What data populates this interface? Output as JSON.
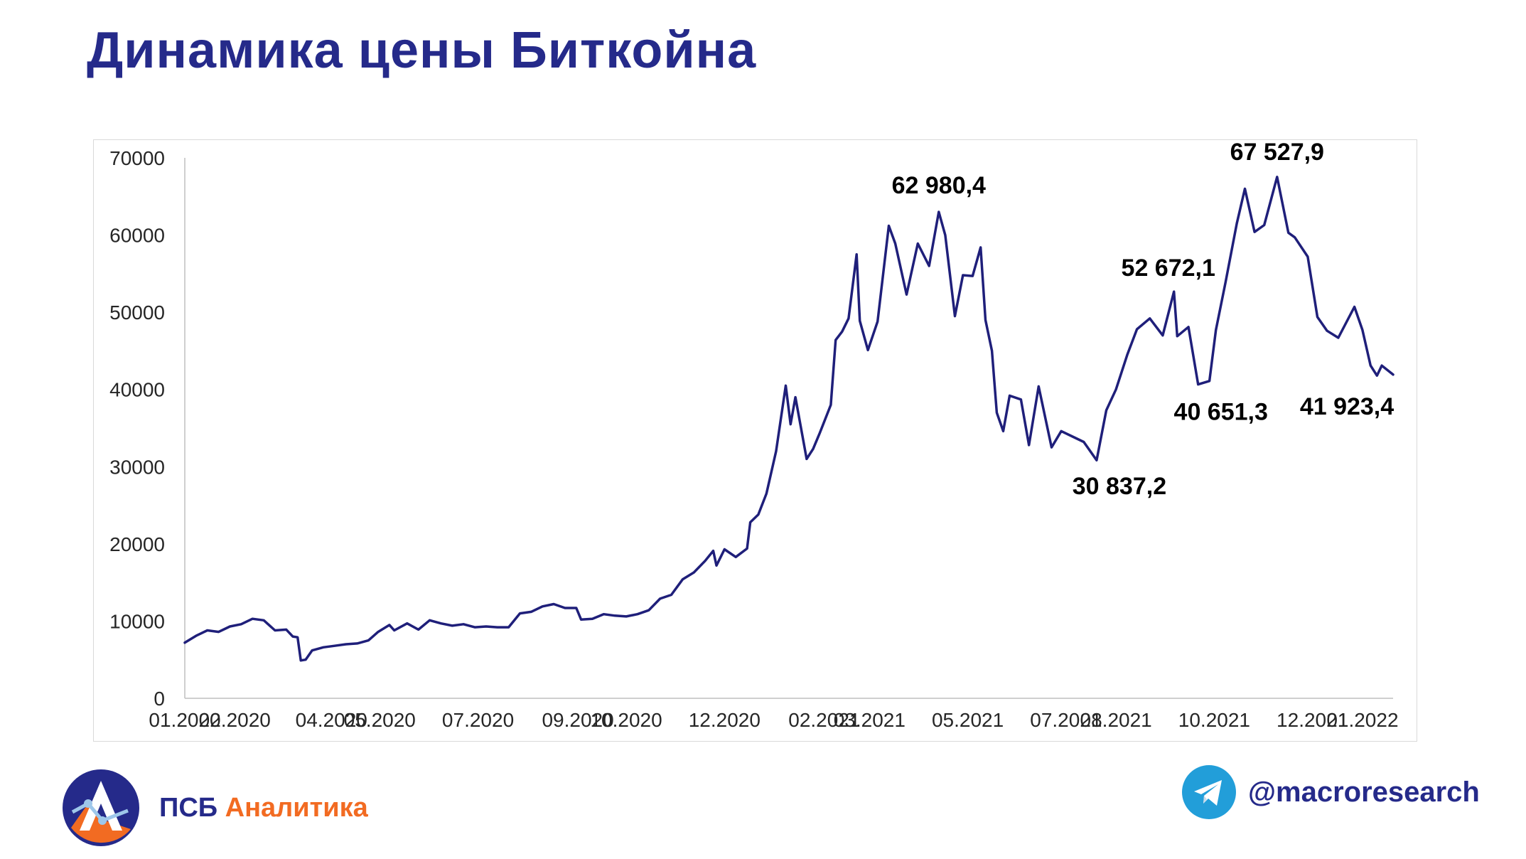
{
  "title": "Динамика цены Биткойна",
  "brand": {
    "logo_icon": "psb-analytics-logo-icon",
    "name_part1": "ПСБ",
    "name_part2": "Аналитика",
    "color_primary": "#252a8a",
    "color_accent": "#f26b22"
  },
  "telegram": {
    "icon": "telegram-icon",
    "handle": "@macroresearch",
    "color": "#229ed9"
  },
  "chart_data": {
    "type": "line",
    "title": "",
    "xlabel": "",
    "ylabel": "",
    "ylim": [
      0,
      70000
    ],
    "yticks": [
      "0",
      "10000",
      "20000",
      "30000",
      "40000",
      "50000",
      "60000",
      "70000"
    ],
    "xlim": [
      "2020-01-01",
      "2022-01-20"
    ],
    "xticks": [
      {
        "date": "2020-01-01",
        "label": "01.2020"
      },
      {
        "date": "2020-02-01",
        "label": "02.2020"
      },
      {
        "date": "2020-04-01",
        "label": "04.2020"
      },
      {
        "date": "2020-05-01",
        "label": "05.2020"
      },
      {
        "date": "2020-07-01",
        "label": "07.2020"
      },
      {
        "date": "2020-09-01",
        "label": "09.2020"
      },
      {
        "date": "2020-10-01",
        "label": "10.2020"
      },
      {
        "date": "2020-12-01",
        "label": "12.2020"
      },
      {
        "date": "2021-02-01",
        "label": "02.2021"
      },
      {
        "date": "2021-03-01",
        "label": "03.2021"
      },
      {
        "date": "2021-05-01",
        "label": "05.2021"
      },
      {
        "date": "2021-07-01",
        "label": "07.2021"
      },
      {
        "date": "2021-08-01",
        "label": "08.2021"
      },
      {
        "date": "2021-10-01",
        "label": "10.2021"
      },
      {
        "date": "2021-12-01",
        "label": "12.2021"
      },
      {
        "date": "2022-01-01",
        "label": "01.2022"
      }
    ],
    "line_color": "#1f1f7a",
    "grid": false,
    "legend": "none",
    "series": [
      {
        "points": [
          [
            "2020-01-01",
            7200
          ],
          [
            "2020-01-08",
            8100
          ],
          [
            "2020-01-15",
            8800
          ],
          [
            "2020-01-22",
            8600
          ],
          [
            "2020-01-29",
            9300
          ],
          [
            "2020-02-05",
            9600
          ],
          [
            "2020-02-12",
            10300
          ],
          [
            "2020-02-19",
            10100
          ],
          [
            "2020-02-26",
            8800
          ],
          [
            "2020-03-04",
            8900
          ],
          [
            "2020-03-08",
            8000
          ],
          [
            "2020-03-11",
            7900
          ],
          [
            "2020-03-13",
            4900
          ],
          [
            "2020-03-16",
            5000
          ],
          [
            "2020-03-20",
            6200
          ],
          [
            "2020-03-27",
            6600
          ],
          [
            "2020-04-03",
            6800
          ],
          [
            "2020-04-10",
            7000
          ],
          [
            "2020-04-17",
            7100
          ],
          [
            "2020-04-24",
            7500
          ],
          [
            "2020-04-30",
            8600
          ],
          [
            "2020-05-07",
            9500
          ],
          [
            "2020-05-10",
            8800
          ],
          [
            "2020-05-18",
            9700
          ],
          [
            "2020-05-25",
            8900
          ],
          [
            "2020-06-01",
            10100
          ],
          [
            "2020-06-08",
            9700
          ],
          [
            "2020-06-15",
            9400
          ],
          [
            "2020-06-22",
            9600
          ],
          [
            "2020-06-29",
            9200
          ],
          [
            "2020-07-06",
            9300
          ],
          [
            "2020-07-13",
            9200
          ],
          [
            "2020-07-20",
            9200
          ],
          [
            "2020-07-27",
            11000
          ],
          [
            "2020-08-03",
            11200
          ],
          [
            "2020-08-10",
            11900
          ],
          [
            "2020-08-17",
            12200
          ],
          [
            "2020-08-24",
            11700
          ],
          [
            "2020-08-31",
            11700
          ],
          [
            "2020-09-03",
            10200
          ],
          [
            "2020-09-10",
            10300
          ],
          [
            "2020-09-17",
            10900
          ],
          [
            "2020-09-24",
            10700
          ],
          [
            "2020-10-01",
            10600
          ],
          [
            "2020-10-08",
            10900
          ],
          [
            "2020-10-15",
            11400
          ],
          [
            "2020-10-22",
            12900
          ],
          [
            "2020-10-29",
            13400
          ],
          [
            "2020-11-05",
            15400
          ],
          [
            "2020-11-12",
            16300
          ],
          [
            "2020-11-19",
            17800
          ],
          [
            "2020-11-24",
            19100
          ],
          [
            "2020-11-26",
            17200
          ],
          [
            "2020-12-01",
            19300
          ],
          [
            "2020-12-08",
            18300
          ],
          [
            "2020-12-15",
            19400
          ],
          [
            "2020-12-17",
            22800
          ],
          [
            "2020-12-22",
            23800
          ],
          [
            "2020-12-27",
            26500
          ],
          [
            "2021-01-02",
            32000
          ],
          [
            "2021-01-08",
            40500
          ],
          [
            "2021-01-11",
            35500
          ],
          [
            "2021-01-14",
            39000
          ],
          [
            "2021-01-21",
            31000
          ],
          [
            "2021-01-25",
            32300
          ],
          [
            "2021-01-29",
            34300
          ],
          [
            "2021-02-05",
            38000
          ],
          [
            "2021-02-08",
            46400
          ],
          [
            "2021-02-12",
            47500
          ],
          [
            "2021-02-16",
            49200
          ],
          [
            "2021-02-21",
            57500
          ],
          [
            "2021-02-23",
            48900
          ],
          [
            "2021-02-28",
            45100
          ],
          [
            "2021-03-06",
            48800
          ],
          [
            "2021-03-13",
            61200
          ],
          [
            "2021-03-17",
            58900
          ],
          [
            "2021-03-24",
            52300
          ],
          [
            "2021-03-31",
            58900
          ],
          [
            "2021-04-07",
            56000
          ],
          [
            "2021-04-13",
            63000
          ],
          [
            "2021-04-17",
            60000
          ],
          [
            "2021-04-23",
            49500
          ],
          [
            "2021-04-28",
            54800
          ],
          [
            "2021-05-04",
            54700
          ],
          [
            "2021-05-09",
            58400
          ],
          [
            "2021-05-12",
            49000
          ],
          [
            "2021-05-16",
            45000
          ],
          [
            "2021-05-19",
            37000
          ],
          [
            "2021-05-23",
            34600
          ],
          [
            "2021-05-27",
            39200
          ],
          [
            "2021-06-03",
            38700
          ],
          [
            "2021-06-08",
            32800
          ],
          [
            "2021-06-14",
            40400
          ],
          [
            "2021-06-22",
            32500
          ],
          [
            "2021-06-28",
            34600
          ],
          [
            "2021-07-06",
            33800
          ],
          [
            "2021-07-12",
            33200
          ],
          [
            "2021-07-20",
            30837
          ],
          [
            "2021-07-26",
            37300
          ],
          [
            "2021-08-01",
            40000
          ],
          [
            "2021-08-08",
            44500
          ],
          [
            "2021-08-14",
            47800
          ],
          [
            "2021-08-22",
            49200
          ],
          [
            "2021-08-30",
            47000
          ],
          [
            "2021-09-06",
            52672
          ],
          [
            "2021-09-08",
            46900
          ],
          [
            "2021-09-15",
            48100
          ],
          [
            "2021-09-21",
            40651
          ],
          [
            "2021-09-28",
            41100
          ],
          [
            "2021-10-02",
            47700
          ],
          [
            "2021-10-08",
            53900
          ],
          [
            "2021-10-15",
            61500
          ],
          [
            "2021-10-20",
            66000
          ],
          [
            "2021-10-26",
            60400
          ],
          [
            "2021-11-01",
            61300
          ],
          [
            "2021-11-09",
            67528
          ],
          [
            "2021-11-16",
            60300
          ],
          [
            "2021-11-20",
            59700
          ],
          [
            "2021-11-28",
            57200
          ],
          [
            "2021-12-04",
            49400
          ],
          [
            "2021-12-10",
            47600
          ],
          [
            "2021-12-17",
            46700
          ],
          [
            "2021-12-27",
            50700
          ],
          [
            "2022-01-01",
            47700
          ],
          [
            "2022-01-06",
            43100
          ],
          [
            "2022-01-10",
            41800
          ],
          [
            "2022-01-13",
            43100
          ],
          [
            "2022-01-20",
            41923
          ]
        ]
      }
    ],
    "annotations": [
      {
        "text": "62 980,4",
        "date": "2021-04-13",
        "value": 62980.4
      },
      {
        "text": "30 837,2",
        "date": "2021-07-20",
        "value": 30837.2
      },
      {
        "text": "52 672,1",
        "date": "2021-09-06",
        "value": 52672.1
      },
      {
        "text": "40 651,3",
        "date": "2021-09-21",
        "value": 40651.3
      },
      {
        "text": "67 527,9",
        "date": "2021-11-09",
        "value": 67527.9
      },
      {
        "text": "41 923,4",
        "date": "2022-01-20",
        "value": 41923.4
      }
    ]
  }
}
